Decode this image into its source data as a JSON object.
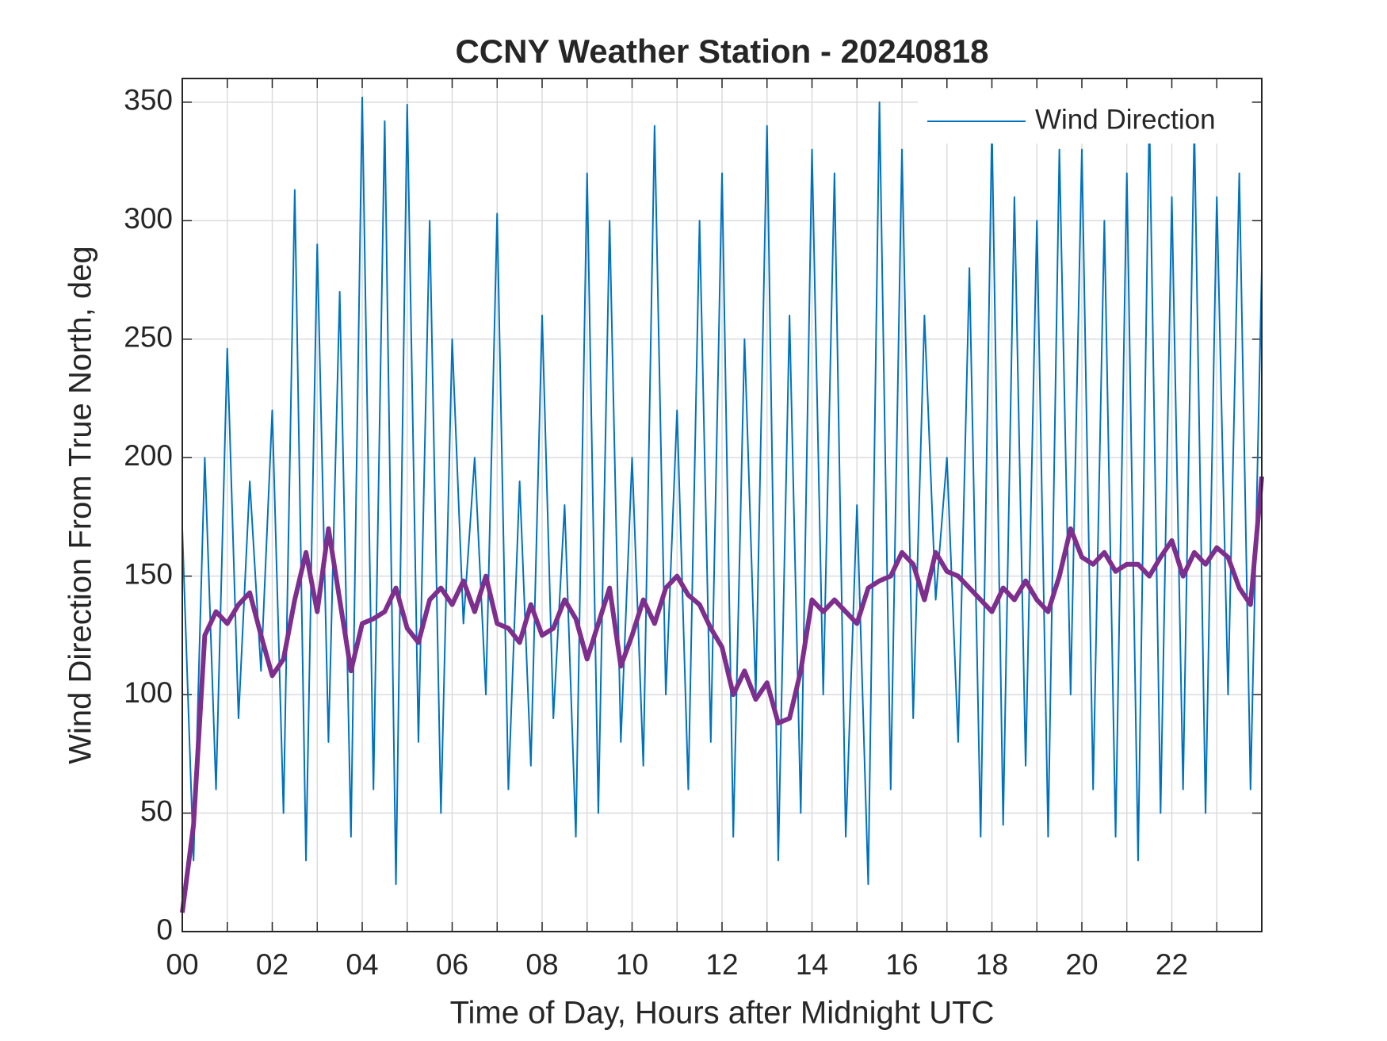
{
  "chart_data": {
    "type": "line",
    "title": "CCNY Weather Station - 20240818",
    "xlabel": "Time of Day, Hours after Midnight UTC",
    "ylabel": "Wind Direction From True North, deg",
    "x": [
      0,
      0.25,
      0.5,
      0.75,
      1,
      1.25,
      1.5,
      1.75,
      2,
      2.25,
      2.5,
      2.75,
      3,
      3.25,
      3.5,
      3.75,
      4,
      4.25,
      4.5,
      4.75,
      5,
      5.25,
      5.5,
      5.75,
      6,
      6.25,
      6.5,
      6.75,
      7,
      7.25,
      7.5,
      7.75,
      8,
      8.25,
      8.5,
      8.75,
      9,
      9.25,
      9.5,
      9.75,
      10,
      10.25,
      10.5,
      10.75,
      11,
      11.25,
      11.5,
      11.75,
      12,
      12.25,
      12.5,
      12.75,
      13,
      13.25,
      13.5,
      13.75,
      14,
      14.25,
      14.5,
      14.75,
      15,
      15.25,
      15.5,
      15.75,
      16,
      16.25,
      16.5,
      16.75,
      17,
      17.25,
      17.5,
      17.75,
      18,
      18.25,
      18.5,
      18.75,
      19,
      19.25,
      19.5,
      19.75,
      20,
      20.25,
      20.5,
      20.75,
      21,
      21.25,
      21.5,
      21.75,
      22,
      22.25,
      22.5,
      22.75,
      23,
      23.25,
      23.5,
      23.75,
      24
    ],
    "series": [
      {
        "name": "Wind Direction",
        "color": "#0072BD",
        "values": [
          170,
          30,
          200,
          60,
          246,
          90,
          190,
          110,
          220,
          50,
          313,
          30,
          290,
          80,
          270,
          40,
          352,
          60,
          342,
          20,
          349,
          80,
          300,
          50,
          250,
          130,
          200,
          100,
          303,
          60,
          190,
          70,
          260,
          90,
          180,
          40,
          320,
          50,
          300,
          80,
          200,
          70,
          340,
          100,
          220,
          60,
          300,
          80,
          320,
          40,
          250,
          100,
          340,
          30,
          260,
          50,
          330,
          100,
          320,
          40,
          180,
          20,
          350,
          60,
          330,
          90,
          260,
          140,
          200,
          80,
          280,
          40,
          340,
          45,
          310,
          70,
          300,
          40,
          330,
          100,
          330,
          60,
          300,
          40,
          320,
          30,
          345,
          50,
          310,
          60,
          340,
          50,
          310,
          100,
          320,
          60,
          280
        ]
      },
      {
        "color": "#7E2F8E",
        "values": [
          8,
          45,
          125,
          135,
          130,
          138,
          143,
          125,
          108,
          115,
          140,
          160,
          135,
          170,
          140,
          110,
          130,
          132,
          135,
          145,
          128,
          122,
          140,
          145,
          138,
          148,
          135,
          150,
          130,
          128,
          122,
          138,
          125,
          128,
          140,
          132,
          115,
          130,
          145,
          112,
          125,
          140,
          130,
          145,
          150,
          142,
          138,
          128,
          120,
          100,
          110,
          98,
          105,
          88,
          90,
          110,
          140,
          135,
          140,
          135,
          130,
          145,
          148,
          150,
          160,
          155,
          140,
          160,
          152,
          150,
          145,
          140,
          135,
          145,
          140,
          148,
          140,
          135,
          150,
          170,
          158,
          155,
          160,
          152,
          155,
          155,
          150,
          158,
          165,
          150,
          160,
          155,
          162,
          158,
          145,
          138,
          192
        ]
      }
    ],
    "xlim": [
      0,
      24
    ],
    "ylim": [
      0,
      360
    ],
    "xticks": [
      {
        "value": 0,
        "label": "00"
      },
      {
        "value": 2,
        "label": "02"
      },
      {
        "value": 4,
        "label": "04"
      },
      {
        "value": 6,
        "label": "06"
      },
      {
        "value": 8,
        "label": "08"
      },
      {
        "value": 10,
        "label": "10"
      },
      {
        "value": 12,
        "label": "12"
      },
      {
        "value": 14,
        "label": "14"
      },
      {
        "value": 16,
        "label": "16"
      },
      {
        "value": 18,
        "label": "18"
      },
      {
        "value": 20,
        "label": "20"
      },
      {
        "value": 22,
        "label": "22"
      }
    ],
    "xminorticks": [
      1,
      3,
      5,
      7,
      9,
      11,
      13,
      15,
      17,
      19,
      21,
      23
    ],
    "yticks": [
      0,
      50,
      100,
      150,
      200,
      250,
      300,
      350
    ],
    "grid": true,
    "legend": "upper right"
  }
}
